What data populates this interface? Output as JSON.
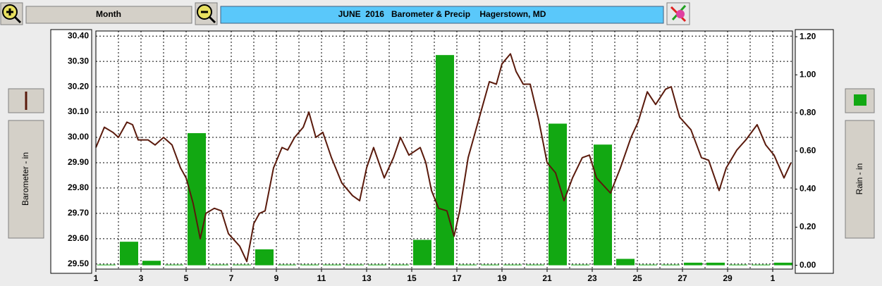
{
  "toolbar": {
    "period": "Month"
  },
  "chart_data": {
    "type": "bar",
    "title": "JUNE  2016   Barometer & Precip    Hagerstown, MD",
    "xlim": [
      1,
      31.875
    ],
    "xticks": [
      1,
      3,
      5,
      7,
      9,
      11,
      13,
      15,
      17,
      19,
      21,
      23,
      25,
      27,
      29,
      {
        "value": 31,
        "label": "1"
      }
    ],
    "ylim": [
      29.48,
      30.42
    ],
    "yticks": [
      {
        "value": 29.5,
        "label": "29.50"
      },
      {
        "value": 29.6,
        "label": "29.60"
      },
      {
        "value": 29.7,
        "label": "29.70"
      },
      {
        "value": 29.8,
        "label": "29.80"
      },
      {
        "value": 29.9,
        "label": "29.90"
      },
      {
        "value": 30.0,
        "label": "30.00"
      },
      {
        "value": 30.1,
        "label": "30.10"
      },
      {
        "value": 30.2,
        "label": "30.20"
      },
      {
        "value": 30.3,
        "label": "30.30"
      },
      {
        "value": 30.4,
        "label": "30.40"
      }
    ],
    "y2lim": [
      -0.02,
      1.23
    ],
    "y2ticks": [
      {
        "value": 0,
        "label": "0.00"
      },
      {
        "value": 0.2,
        "label": "0.20"
      },
      {
        "value": 0.4,
        "label": "0.40"
      },
      {
        "value": 0.6,
        "label": "0.60"
      },
      {
        "value": 0.8,
        "label": "0.80"
      },
      {
        "value": 1.0,
        "label": "1.00"
      },
      {
        "value": 1.2,
        "label": "1.20"
      }
    ],
    "grid": true,
    "series": [
      {
        "name": "Barometer - in",
        "type": "line",
        "color": "#5a1a0c",
        "x": [
          1.0,
          1.375,
          1.75,
          2.0,
          2.375,
          2.625,
          2.875,
          3.31,
          3.625,
          4.0,
          4.375,
          4.75,
          5.0,
          5.31,
          5.625,
          5.875,
          6.25,
          6.56,
          6.875,
          7.375,
          7.69,
          8.0,
          8.25,
          8.5,
          8.875,
          9.25,
          9.5,
          9.81,
          10.19,
          10.44,
          10.75,
          11.06,
          11.44,
          11.9,
          12.375,
          12.69,
          13.0,
          13.31,
          13.78,
          14.19,
          14.5,
          14.875,
          15.375,
          15.625,
          15.875,
          16.19,
          16.56,
          16.875,
          17.125,
          17.5,
          18.0,
          18.44,
          18.75,
          19.0,
          19.375,
          19.625,
          19.94,
          20.25,
          20.625,
          21.0,
          21.375,
          21.75,
          22.125,
          22.56,
          22.875,
          23.19,
          23.5,
          23.81,
          24.25,
          24.72,
          25.03,
          25.44,
          25.81,
          26.25,
          26.5,
          26.875,
          27.375,
          27.84,
          28.16,
          28.625,
          28.94,
          29.41,
          29.81,
          30.31,
          30.69,
          31.06,
          31.5,
          31.81
        ],
        "values": [
          29.96,
          30.04,
          30.02,
          30.0,
          30.06,
          30.05,
          29.99,
          29.99,
          29.97,
          30.0,
          29.97,
          29.88,
          29.84,
          29.74,
          29.6,
          29.7,
          29.72,
          29.71,
          29.62,
          29.57,
          29.51,
          29.66,
          29.7,
          29.71,
          29.88,
          29.96,
          29.95,
          30.0,
          30.04,
          30.1,
          30.0,
          30.02,
          29.92,
          29.82,
          29.77,
          29.75,
          29.88,
          29.96,
          29.84,
          29.92,
          30.0,
          29.93,
          29.96,
          29.9,
          29.79,
          29.72,
          29.71,
          29.61,
          29.71,
          29.92,
          30.08,
          30.22,
          30.21,
          30.29,
          30.33,
          30.26,
          30.21,
          30.21,
          30.07,
          29.9,
          29.86,
          29.75,
          29.84,
          29.92,
          29.93,
          29.84,
          29.81,
          29.78,
          29.88,
          30.0,
          30.06,
          30.18,
          30.13,
          30.19,
          30.2,
          30.08,
          30.03,
          29.92,
          29.91,
          29.79,
          29.88,
          29.95,
          29.99,
          30.05,
          29.97,
          29.93,
          29.84,
          29.9
        ]
      },
      {
        "name": "Rain - in",
        "type": "bar",
        "axis": "y2",
        "color": "#12a812",
        "x": [
          1,
          2,
          3,
          4,
          5,
          6,
          7,
          8,
          9,
          10,
          11,
          12,
          13,
          14,
          15,
          16,
          17,
          18,
          19,
          20,
          21,
          22,
          23,
          24,
          25,
          26,
          27,
          28,
          29,
          30,
          31
        ],
        "values": [
          0,
          0.12,
          0.02,
          0,
          0.69,
          0,
          0,
          0.08,
          0,
          0,
          0,
          0,
          0,
          0,
          0.13,
          1.1,
          0,
          0,
          0,
          0,
          0.74,
          0,
          0.63,
          0.03,
          0,
          0,
          0.01,
          0.01,
          0,
          0,
          0.01
        ]
      }
    ]
  }
}
